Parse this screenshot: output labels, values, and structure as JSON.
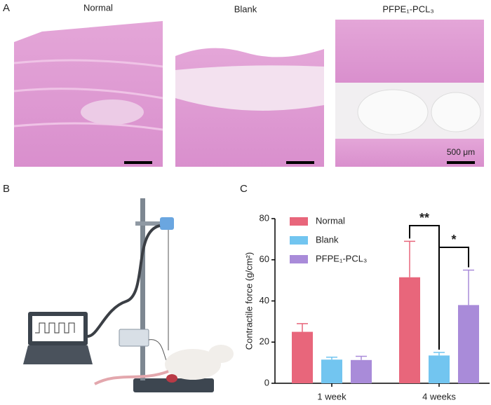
{
  "panel_labels": [
    "A",
    "B",
    "C"
  ],
  "histology": {
    "titles": [
      "Normal",
      "Blank",
      "PFPE₁-PCL₃"
    ],
    "scale_bar": "500 μm"
  },
  "chart_data": {
    "type": "bar",
    "ylabel": "Contractile force (g/cm²)",
    "categories": [
      "1 week",
      "4 weeks"
    ],
    "series": [
      {
        "name": "Normal",
        "color": "#e8667b",
        "values": [
          25,
          51.5
        ],
        "errors": [
          4,
          17.5
        ]
      },
      {
        "name": "Blank",
        "color": "#72c5f0",
        "values": [
          11.5,
          13.5
        ],
        "errors": [
          1.2,
          1.5
        ]
      },
      {
        "name": "PFPE₁-PCL₃",
        "color": "#a98bd9",
        "values": [
          11.3,
          38
        ],
        "errors": [
          1.8,
          17
        ]
      }
    ],
    "ylim": [
      0,
      80
    ],
    "yticks": [
      0,
      20,
      40,
      60,
      80
    ],
    "annotations": [
      "**",
      "*"
    ]
  }
}
